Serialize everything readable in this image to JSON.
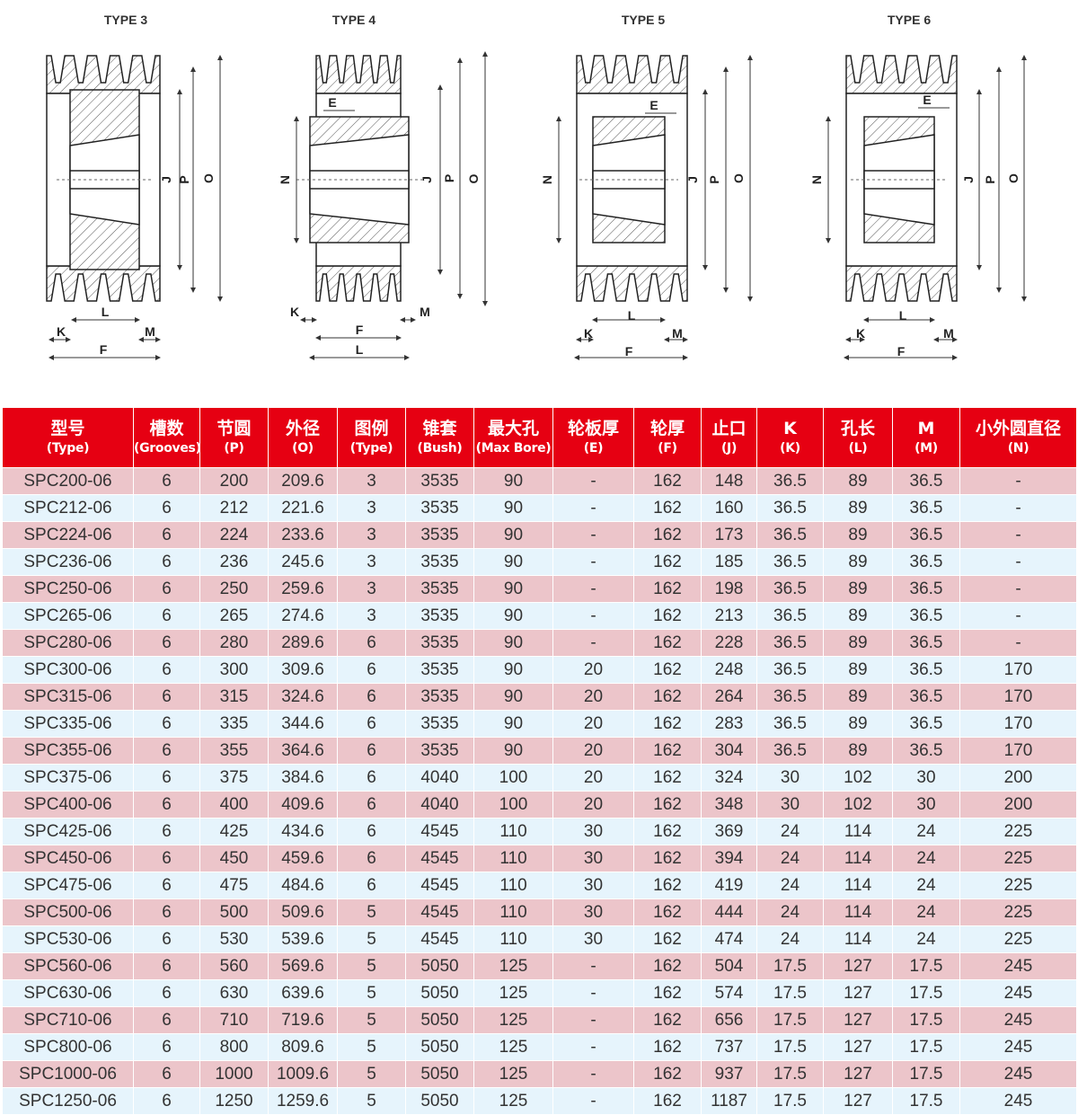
{
  "drawings": [
    {
      "title": "TYPE 3",
      "type": 3,
      "labels": {
        "J": "J",
        "P": "P",
        "O": "O",
        "K": "K",
        "L": "L",
        "F": "F",
        "M": "M"
      }
    },
    {
      "title": "TYPE 4",
      "type": 4,
      "labels": {
        "N": "N",
        "E": "E",
        "J": "J",
        "P": "P",
        "O": "O",
        "K": "K",
        "L": "L",
        "F": "F",
        "M": "M"
      }
    },
    {
      "title": "TYPE 5",
      "type": 5,
      "labels": {
        "N": "N",
        "E": "E",
        "J": "J",
        "P": "P",
        "O": "O",
        "K": "K",
        "L": "L",
        "F": "F",
        "M": "M"
      }
    },
    {
      "title": "TYPE 6",
      "type": 6,
      "labels": {
        "N": "N",
        "E": "E",
        "J": "J",
        "P": "P",
        "O": "O",
        "K": "K",
        "L": "L",
        "F": "F",
        "M": "M"
      }
    }
  ],
  "colors": {
    "header": "#e60012",
    "row_odd": "#ecc5ca",
    "row_even": "#e6f4fc"
  },
  "table": {
    "headers": [
      {
        "zh": "型号",
        "en": "(Type)"
      },
      {
        "zh": "槽数",
        "en": "(Grooves)"
      },
      {
        "zh": "节圆",
        "en": "(P)"
      },
      {
        "zh": "外径",
        "en": "(O)"
      },
      {
        "zh": "图例",
        "en": "(Type)"
      },
      {
        "zh": "锥套",
        "en": "(Bush)"
      },
      {
        "zh": "最大孔",
        "en": "(Max Bore)"
      },
      {
        "zh": "轮板厚",
        "en": "(E)"
      },
      {
        "zh": "轮厚",
        "en": "(F)"
      },
      {
        "zh": "止口",
        "en": "(J)"
      },
      {
        "zh": "K",
        "en": "(K)"
      },
      {
        "zh": "孔长",
        "en": "(L)"
      },
      {
        "zh": "M",
        "en": "(M)"
      },
      {
        "zh": "小外圆直径",
        "en": "(N)"
      }
    ],
    "rows": [
      [
        "SPC200-06",
        "6",
        "200",
        "209.6",
        "3",
        "3535",
        "90",
        "-",
        "162",
        "148",
        "36.5",
        "89",
        "36.5",
        "-"
      ],
      [
        "SPC212-06",
        "6",
        "212",
        "221.6",
        "3",
        "3535",
        "90",
        "-",
        "162",
        "160",
        "36.5",
        "89",
        "36.5",
        "-"
      ],
      [
        "SPC224-06",
        "6",
        "224",
        "233.6",
        "3",
        "3535",
        "90",
        "-",
        "162",
        "173",
        "36.5",
        "89",
        "36.5",
        "-"
      ],
      [
        "SPC236-06",
        "6",
        "236",
        "245.6",
        "3",
        "3535",
        "90",
        "-",
        "162",
        "185",
        "36.5",
        "89",
        "36.5",
        "-"
      ],
      [
        "SPC250-06",
        "6",
        "250",
        "259.6",
        "3",
        "3535",
        "90",
        "-",
        "162",
        "198",
        "36.5",
        "89",
        "36.5",
        "-"
      ],
      [
        "SPC265-06",
        "6",
        "265",
        "274.6",
        "3",
        "3535",
        "90",
        "-",
        "162",
        "213",
        "36.5",
        "89",
        "36.5",
        "-"
      ],
      [
        "SPC280-06",
        "6",
        "280",
        "289.6",
        "6",
        "3535",
        "90",
        "-",
        "162",
        "228",
        "36.5",
        "89",
        "36.5",
        "-"
      ],
      [
        "SPC300-06",
        "6",
        "300",
        "309.6",
        "6",
        "3535",
        "90",
        "20",
        "162",
        "248",
        "36.5",
        "89",
        "36.5",
        "170"
      ],
      [
        "SPC315-06",
        "6",
        "315",
        "324.6",
        "6",
        "3535",
        "90",
        "20",
        "162",
        "264",
        "36.5",
        "89",
        "36.5",
        "170"
      ],
      [
        "SPC335-06",
        "6",
        "335",
        "344.6",
        "6",
        "3535",
        "90",
        "20",
        "162",
        "283",
        "36.5",
        "89",
        "36.5",
        "170"
      ],
      [
        "SPC355-06",
        "6",
        "355",
        "364.6",
        "6",
        "3535",
        "90",
        "20",
        "162",
        "304",
        "36.5",
        "89",
        "36.5",
        "170"
      ],
      [
        "SPC375-06",
        "6",
        "375",
        "384.6",
        "6",
        "4040",
        "100",
        "20",
        "162",
        "324",
        "30",
        "102",
        "30",
        "200"
      ],
      [
        "SPC400-06",
        "6",
        "400",
        "409.6",
        "6",
        "4040",
        "100",
        "20",
        "162",
        "348",
        "30",
        "102",
        "30",
        "200"
      ],
      [
        "SPC425-06",
        "6",
        "425",
        "434.6",
        "6",
        "4545",
        "110",
        "30",
        "162",
        "369",
        "24",
        "114",
        "24",
        "225"
      ],
      [
        "SPC450-06",
        "6",
        "450",
        "459.6",
        "6",
        "4545",
        "110",
        "30",
        "162",
        "394",
        "24",
        "114",
        "24",
        "225"
      ],
      [
        "SPC475-06",
        "6",
        "475",
        "484.6",
        "6",
        "4545",
        "110",
        "30",
        "162",
        "419",
        "24",
        "114",
        "24",
        "225"
      ],
      [
        "SPC500-06",
        "6",
        "500",
        "509.6",
        "5",
        "4545",
        "110",
        "30",
        "162",
        "444",
        "24",
        "114",
        "24",
        "225"
      ],
      [
        "SPC530-06",
        "6",
        "530",
        "539.6",
        "5",
        "4545",
        "110",
        "30",
        "162",
        "474",
        "24",
        "114",
        "24",
        "225"
      ],
      [
        "SPC560-06",
        "6",
        "560",
        "569.6",
        "5",
        "5050",
        "125",
        "-",
        "162",
        "504",
        "17.5",
        "127",
        "17.5",
        "245"
      ],
      [
        "SPC630-06",
        "6",
        "630",
        "639.6",
        "5",
        "5050",
        "125",
        "-",
        "162",
        "574",
        "17.5",
        "127",
        "17.5",
        "245"
      ],
      [
        "SPC710-06",
        "6",
        "710",
        "719.6",
        "5",
        "5050",
        "125",
        "-",
        "162",
        "656",
        "17.5",
        "127",
        "17.5",
        "245"
      ],
      [
        "SPC800-06",
        "6",
        "800",
        "809.6",
        "5",
        "5050",
        "125",
        "-",
        "162",
        "737",
        "17.5",
        "127",
        "17.5",
        "245"
      ],
      [
        "SPC1000-06",
        "6",
        "1000",
        "1009.6",
        "5",
        "5050",
        "125",
        "-",
        "162",
        "937",
        "17.5",
        "127",
        "17.5",
        "245"
      ],
      [
        "SPC1250-06",
        "6",
        "1250",
        "1259.6",
        "5",
        "5050",
        "125",
        "-",
        "162",
        "1187",
        "17.5",
        "127",
        "17.5",
        "245"
      ]
    ]
  }
}
